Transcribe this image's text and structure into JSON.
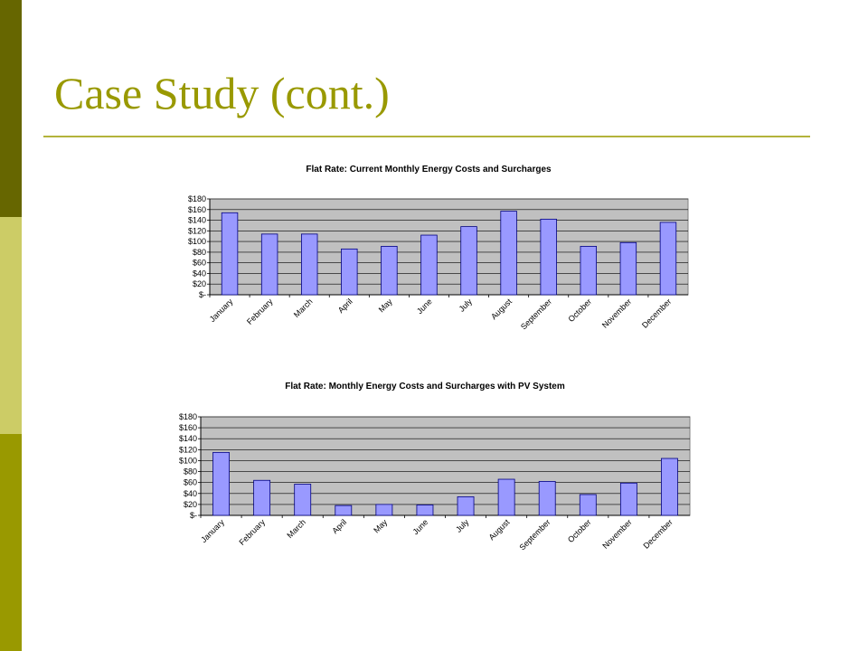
{
  "slide": {
    "title": "Case Study (cont.)",
    "colors": {
      "title": "#999900",
      "rule": "#b3b33b",
      "sidebar_top": "#666600",
      "sidebar_mid": "#cccc66",
      "sidebar_bottom": "#999900",
      "plot_bg": "#c0c0c0",
      "bar_fill": "#9999ff",
      "bar_stroke": "#000080"
    }
  },
  "chart_data": [
    {
      "type": "bar",
      "title": "Flat Rate:  Current Monthly Energy Costs and Surcharges",
      "categories": [
        "January",
        "February",
        "March",
        "April",
        "May",
        "June",
        "July",
        "August",
        "September",
        "October",
        "November",
        "December"
      ],
      "values": [
        154,
        114,
        114,
        86,
        91,
        112,
        128,
        157,
        142,
        91,
        98,
        136
      ],
      "ylim": [
        0,
        180
      ],
      "yticks": [
        "$-",
        "$20",
        "$40",
        "$60",
        "$80",
        "$100",
        "$120",
        "$140",
        "$160",
        "$180"
      ],
      "xlabel": "",
      "ylabel": "",
      "grid": true,
      "legend": false
    },
    {
      "type": "bar",
      "title": "Flat Rate:  Monthly Energy Costs and Surcharges with PV System",
      "categories": [
        "January",
        "February",
        "March",
        "April",
        "May",
        "June",
        "July",
        "August",
        "September",
        "October",
        "November",
        "December"
      ],
      "values": [
        115,
        64,
        57,
        18,
        20,
        19,
        34,
        66,
        62,
        38,
        59,
        104
      ],
      "ylim": [
        0,
        180
      ],
      "yticks": [
        "$-",
        "$20",
        "$40",
        "$60",
        "$80",
        "$100",
        "$120",
        "$140",
        "$160",
        "$180"
      ],
      "xlabel": "",
      "ylabel": "",
      "grid": true,
      "legend": false
    }
  ]
}
